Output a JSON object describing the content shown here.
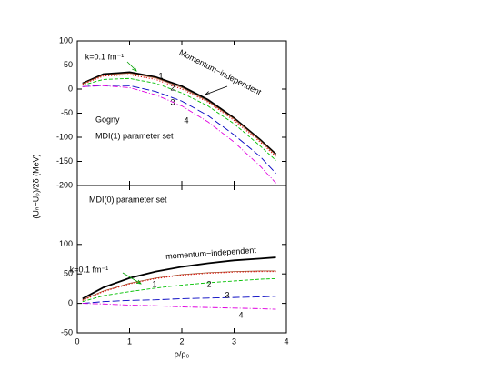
{
  "chart_data": [
    {
      "type": "line",
      "ylabel": "(Uₙ−Uₚ)/2δ (MeV)",
      "annotations": [
        "Gogny",
        "MDI(1) parameter set"
      ],
      "x": [
        0.1,
        0.5,
        1,
        1.5,
        2,
        2.5,
        3,
        3.5,
        3.8
      ],
      "xlim": [
        0,
        4
      ],
      "xticks": [
        0,
        1,
        2,
        3,
        4
      ],
      "ylim": [
        -200,
        100
      ],
      "yticks": [
        -200,
        -150,
        -100,
        -50,
        0,
        50,
        100
      ],
      "series": [
        {
          "name": "Momentum−independent",
          "color": "#000000",
          "values": [
            12,
            31,
            35,
            25,
            6,
            -22,
            -60,
            -105,
            -135
          ]
        },
        {
          "name": "k=0.1 fm⁻¹",
          "color": "#a0522d",
          "values": [
            11,
            29,
            33,
            23,
            3,
            -25,
            -62,
            -107,
            -137
          ]
        },
        {
          "name": "1",
          "color": "#e00000",
          "values": [
            10,
            27,
            30,
            20,
            0,
            -27,
            -65,
            -110,
            -140
          ]
        },
        {
          "name": "2",
          "color": "#00c000",
          "values": [
            8,
            20,
            22,
            12,
            -8,
            -35,
            -72,
            -118,
            -148
          ]
        },
        {
          "name": "3",
          "color": "#0000c0",
          "values": [
            5,
            8,
            7,
            -5,
            -25,
            -55,
            -95,
            -140,
            -175
          ]
        },
        {
          "name": "4",
          "color": "#e000e0",
          "values": [
            5,
            7,
            3,
            -12,
            -35,
            -68,
            -110,
            -160,
            -195
          ]
        }
      ]
    },
    {
      "type": "line",
      "xlabel": "ρ/ρ₀",
      "annotations": [
        "MDI(0) parameter set"
      ],
      "x": [
        0.1,
        0.5,
        1,
        1.5,
        2,
        2.5,
        3,
        3.5,
        3.8
      ],
      "xlim": [
        0,
        4
      ],
      "xticks": [
        0,
        1,
        2,
        3,
        4
      ],
      "ylim": [
        -50,
        200
      ],
      "yticks": [
        -50,
        0,
        50,
        100
      ],
      "series": [
        {
          "name": "momentum−independent",
          "color": "#000000",
          "values": [
            8,
            27,
            43,
            54,
            62,
            68,
            73,
            76,
            78
          ]
        },
        {
          "name": "k=0.1 fm⁻¹",
          "color": "#a0522d",
          "values": [
            6,
            21,
            34,
            43,
            49,
            52,
            54,
            55,
            55
          ]
        },
        {
          "name": "1",
          "color": "#e00000",
          "values": [
            5,
            20,
            33,
            42,
            48,
            51,
            53,
            54,
            54
          ]
        },
        {
          "name": "2",
          "color": "#00c000",
          "values": [
            3,
            13,
            20,
            26,
            31,
            35,
            38,
            41,
            42
          ]
        },
        {
          "name": "3",
          "color": "#0000c0",
          "values": [
            0,
            3,
            5,
            6,
            8,
            9,
            10,
            11,
            12
          ]
        },
        {
          "name": "4",
          "color": "#e000e0",
          "values": [
            0,
            -1,
            -3,
            -4,
            -6,
            -7,
            -8,
            -9,
            -10
          ]
        }
      ]
    }
  ]
}
